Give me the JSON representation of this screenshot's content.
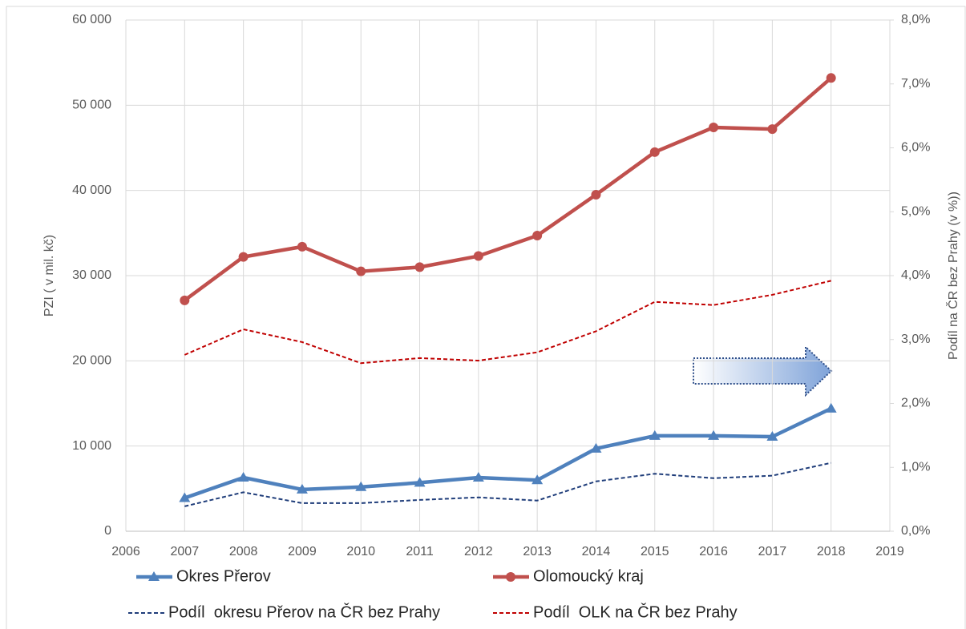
{
  "chart_data": {
    "type": "line",
    "y_label": "PZI ( v mil. kč)",
    "y2_label": "Podíl na ČR bez Prahy (v %))",
    "x": [
      2007,
      2008,
      2009,
      2010,
      2011,
      2012,
      2013,
      2014,
      2015,
      2016,
      2017,
      2018
    ],
    "xlim": [
      2006,
      2019
    ],
    "xticks": [
      2006,
      2007,
      2008,
      2009,
      2010,
      2011,
      2012,
      2013,
      2014,
      2015,
      2016,
      2017,
      2018,
      2019
    ],
    "ylim": [
      0,
      60000
    ],
    "yticks": [
      0,
      {
        "value": 10000,
        "label": "10 000"
      },
      {
        "value": 20000,
        "label": "20 000"
      },
      {
        "value": 30000,
        "label": "30 000"
      },
      {
        "value": 40000,
        "label": "40 000"
      },
      {
        "value": 50000,
        "label": "50 000"
      },
      {
        "value": 60000,
        "label": "60 000"
      }
    ],
    "y2lim": [
      0,
      8
    ],
    "y2ticks": [
      {
        "value": 0,
        "label": "0,0%"
      },
      {
        "value": 1,
        "label": "1,0%"
      },
      {
        "value": 2,
        "label": "2,0%"
      },
      {
        "value": 3,
        "label": "3,0%"
      },
      {
        "value": 4,
        "label": "4,0%"
      },
      {
        "value": 5,
        "label": "5,0%"
      },
      {
        "value": 6,
        "label": "6,0%"
      },
      {
        "value": 7,
        "label": "7,0%"
      },
      {
        "value": 8,
        "label": "8,0%"
      }
    ],
    "grid": true,
    "series": [
      {
        "name": "Okres Přerov",
        "color": "#4f81bd",
        "marker": "triangle",
        "values": [
          3900,
          6300,
          4900,
          5200,
          5700,
          6300,
          6000,
          9700,
          11200,
          11200,
          11100,
          14400
        ]
      },
      {
        "name": "Olomoucký kraj",
        "color": "#c0504d",
        "marker": "circle",
        "values": [
          27100,
          32200,
          33400,
          30500,
          31000,
          32300,
          34700,
          39500,
          44500,
          47400,
          47200,
          53200
        ]
      },
      {
        "name": "Podíl  okresu Přerov na ČR bez Prahy",
        "color": "#1f3d7a",
        "dash": true,
        "axis": "y2",
        "values": [
          0.39,
          0.61,
          0.44,
          0.44,
          0.49,
          0.53,
          0.48,
          0.78,
          0.9,
          0.83,
          0.87,
          1.07
        ]
      },
      {
        "name": "Podíl  OLK na ČR bez Prahy",
        "color": "#c00000",
        "dash": true,
        "axis": "y2",
        "values": [
          2.76,
          3.16,
          2.96,
          2.63,
          2.71,
          2.67,
          2.8,
          3.13,
          3.59,
          3.54,
          3.7,
          3.92
        ]
      }
    ]
  }
}
